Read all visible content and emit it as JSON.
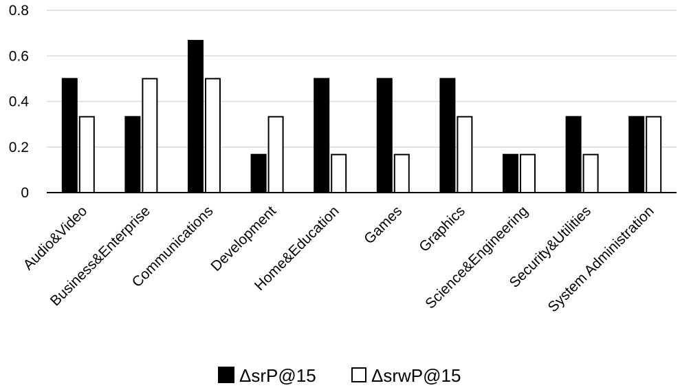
{
  "chart_data": {
    "type": "bar",
    "categories": [
      "Audio&Video",
      "Business&Enterprise",
      "Communications",
      "Development",
      "Home&Education",
      "Games",
      "Graphics",
      "Science&Engineering",
      "Security&Utilities",
      "System Administration"
    ],
    "series": [
      {
        "name": "ΔsrP@15",
        "color": "#000000",
        "values": [
          0.5,
          0.333,
          0.667,
          0.167,
          0.5,
          0.5,
          0.5,
          0.167,
          0.333,
          0.333
        ]
      },
      {
        "name": "ΔsrwP@15",
        "color": "#ffffff",
        "values": [
          0.333,
          0.5,
          0.5,
          0.333,
          0.167,
          0.167,
          0.333,
          0.167,
          0.167,
          0.333
        ]
      }
    ],
    "yticks": [
      "0",
      "0.2",
      "0.4",
      "0.6",
      "0.8"
    ],
    "ylim": [
      0,
      0.8
    ],
    "grid": true,
    "legend_position": "bottom",
    "title": "",
    "xlabel": "",
    "ylabel": ""
  }
}
